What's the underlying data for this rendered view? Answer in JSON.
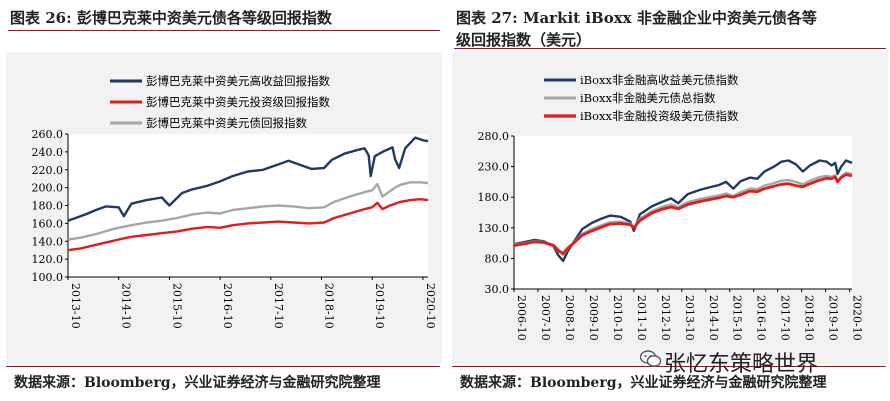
{
  "chart_data": [
    {
      "type": "line",
      "title": "图表 26:  彭博巴克莱中资美元债各等级回报指数",
      "xlabel": "",
      "ylabel": "",
      "ylim": [
        100.0,
        260.0
      ],
      "yticks": [
        "260.0",
        "240.0",
        "220.0",
        "200.0",
        "180.0",
        "160.0",
        "140.0",
        "120.0",
        "100.0"
      ],
      "ytick_values": [
        260,
        240,
        220,
        200,
        180,
        160,
        140,
        120,
        100
      ],
      "xlim": [
        2013.75,
        2020.85
      ],
      "xticks": [
        "2013-10",
        "2014-10",
        "2015-10",
        "2016-10",
        "2017-10",
        "2018-10",
        "2019-10",
        "2020-10"
      ],
      "xtick_values": [
        2013.75,
        2014.75,
        2015.75,
        2016.75,
        2017.75,
        2018.75,
        2019.75,
        2020.75
      ],
      "legend_position": "top",
      "series": [
        {
          "name": "彭博巴克莱中资美元高收益回报指数",
          "color": "#1f3b63",
          "x": [
            2013.75,
            2013.9,
            2014.1,
            2014.3,
            2014.5,
            2014.75,
            2014.85,
            2015.0,
            2015.3,
            2015.6,
            2015.75,
            2016.0,
            2016.2,
            2016.5,
            2016.75,
            2017.0,
            2017.3,
            2017.6,
            2017.9,
            2018.1,
            2018.3,
            2018.55,
            2018.8,
            2018.95,
            2019.2,
            2019.45,
            2019.6,
            2019.68,
            2019.72,
            2019.8,
            2019.95,
            2020.15,
            2020.2,
            2020.28,
            2020.4,
            2020.6,
            2020.75,
            2020.85
          ],
          "y": [
            163,
            166,
            170,
            175,
            179,
            178,
            168,
            182,
            186,
            189,
            180,
            194,
            198,
            202,
            207,
            213,
            218,
            220,
            226,
            230,
            226,
            221,
            222,
            231,
            238,
            242,
            244,
            236,
            213,
            235,
            240,
            245,
            232,
            222,
            244,
            256,
            253,
            252
          ]
        },
        {
          "name": "彭博巴克莱中资美元投资级回报指数",
          "color": "#e31b1b",
          "x": [
            2013.75,
            2014.0,
            2014.3,
            2014.6,
            2014.75,
            2015.0,
            2015.3,
            2015.6,
            2015.9,
            2016.2,
            2016.5,
            2016.75,
            2017.0,
            2017.3,
            2017.6,
            2017.9,
            2018.2,
            2018.5,
            2018.8,
            2019.0,
            2019.3,
            2019.6,
            2019.75,
            2019.85,
            2019.95,
            2020.1,
            2020.2,
            2020.3,
            2020.5,
            2020.7,
            2020.85
          ],
          "y": [
            130,
            132,
            136,
            140,
            142,
            145,
            147,
            149,
            151,
            154,
            156,
            155,
            158,
            160,
            161,
            162,
            161,
            160,
            161,
            166,
            171,
            176,
            178,
            183,
            176,
            180,
            182,
            184,
            186,
            187,
            186
          ]
        },
        {
          "name": "彭博巴克莱中资美元债回报指数",
          "color": "#a6a6a6",
          "x": [
            2013.75,
            2014.0,
            2014.3,
            2014.6,
            2014.75,
            2015.0,
            2015.3,
            2015.6,
            2015.9,
            2016.2,
            2016.5,
            2016.75,
            2017.0,
            2017.3,
            2017.6,
            2017.9,
            2018.2,
            2018.5,
            2018.8,
            2019.0,
            2019.3,
            2019.6,
            2019.75,
            2019.85,
            2019.95,
            2020.1,
            2020.2,
            2020.3,
            2020.5,
            2020.7,
            2020.85
          ],
          "y": [
            142,
            144,
            148,
            153,
            155,
            158,
            161,
            163,
            166,
            170,
            172,
            171,
            175,
            177,
            179,
            180,
            179,
            177,
            178,
            184,
            190,
            195,
            197,
            204,
            190,
            196,
            200,
            203,
            206,
            206,
            205
          ]
        }
      ]
    },
    {
      "type": "line",
      "title": "图表 27:  Markit iBoxx 非金融企业中资美元债各等级回报指数（美元）",
      "title_line1": "图表 27:  Markit iBoxx 非金融企业中资美元债各等",
      "title_line2": "级回报指数（美元）",
      "xlabel": "",
      "ylabel": "",
      "ylim": [
        30.0,
        280.0
      ],
      "yticks": [
        "280.0",
        "230.0",
        "180.0",
        "130.0",
        "80.0",
        "30.0"
      ],
      "ytick_values": [
        280,
        230,
        180,
        130,
        80,
        30
      ],
      "xlim": [
        2006.75,
        2020.85
      ],
      "xticks": [
        "2006-10",
        "2007-10",
        "2008-10",
        "2009-10",
        "2010-10",
        "2011-10",
        "2012-10",
        "2013-10",
        "2014-10",
        "2015-10",
        "2016-10",
        "2017-10",
        "2018-10",
        "2019-10",
        "2020-10"
      ],
      "xtick_values": [
        2006.75,
        2007.75,
        2008.75,
        2009.75,
        2010.75,
        2011.75,
        2012.75,
        2013.75,
        2014.75,
        2015.75,
        2016.75,
        2017.75,
        2018.75,
        2019.75,
        2020.75
      ],
      "legend_position": "top",
      "series": [
        {
          "name": "iBoxx非金融高收益美元债指数",
          "color": "#1f3b63",
          "x": [
            2006.75,
            2007.2,
            2007.6,
            2008.0,
            2008.4,
            2008.6,
            2008.8,
            2009.0,
            2009.3,
            2009.6,
            2010.0,
            2010.4,
            2010.75,
            2011.2,
            2011.6,
            2011.75,
            2012.0,
            2012.5,
            2012.9,
            2013.3,
            2013.6,
            2014.0,
            2014.5,
            2014.9,
            2015.3,
            2015.6,
            2015.9,
            2016.2,
            2016.6,
            2016.9,
            2017.2,
            2017.6,
            2017.9,
            2018.2,
            2018.5,
            2018.8,
            2019.1,
            2019.5,
            2019.8,
            2020.0,
            2020.15,
            2020.25,
            2020.4,
            2020.6,
            2020.85
          ],
          "y": [
            103,
            107,
            110,
            108,
            100,
            85,
            76,
            92,
            110,
            128,
            138,
            145,
            150,
            148,
            140,
            125,
            152,
            165,
            172,
            178,
            170,
            185,
            192,
            196,
            200,
            205,
            194,
            206,
            212,
            210,
            222,
            230,
            238,
            240,
            234,
            222,
            232,
            240,
            238,
            232,
            236,
            218,
            230,
            240,
            236
          ]
        },
        {
          "name": "iBoxx非金融美元债总指数",
          "color": "#a6a6a6",
          "x": [
            2006.75,
            2007.2,
            2007.6,
            2008.0,
            2008.4,
            2008.6,
            2008.8,
            2009.0,
            2009.3,
            2009.6,
            2010.0,
            2010.4,
            2010.75,
            2011.2,
            2011.6,
            2011.75,
            2012.0,
            2012.5,
            2012.9,
            2013.3,
            2013.6,
            2014.0,
            2014.5,
            2014.9,
            2015.3,
            2015.6,
            2015.9,
            2016.2,
            2016.6,
            2016.9,
            2017.2,
            2017.6,
            2017.9,
            2018.2,
            2018.5,
            2018.8,
            2019.1,
            2019.5,
            2019.8,
            2020.0,
            2020.15,
            2020.25,
            2020.4,
            2020.6,
            2020.85
          ],
          "y": [
            102,
            105,
            108,
            107,
            101,
            92,
            86,
            96,
            108,
            120,
            128,
            134,
            139,
            140,
            137,
            130,
            145,
            157,
            164,
            168,
            164,
            172,
            177,
            180,
            183,
            186,
            182,
            188,
            194,
            193,
            199,
            203,
            207,
            208,
            205,
            201,
            207,
            213,
            215,
            213,
            216,
            205,
            214,
            220,
            218
          ]
        },
        {
          "name": "iBoxx非金融投资级美元债指数",
          "color": "#e31b1b",
          "x": [
            2006.75,
            2007.2,
            2007.6,
            2008.0,
            2008.4,
            2008.6,
            2008.8,
            2009.0,
            2009.3,
            2009.6,
            2010.0,
            2010.4,
            2010.75,
            2011.2,
            2011.6,
            2011.75,
            2012.0,
            2012.5,
            2012.9,
            2013.3,
            2013.6,
            2014.0,
            2014.5,
            2014.9,
            2015.3,
            2015.6,
            2015.9,
            2016.2,
            2016.6,
            2016.9,
            2017.2,
            2017.6,
            2017.9,
            2018.2,
            2018.5,
            2018.8,
            2019.1,
            2019.5,
            2019.8,
            2020.0,
            2020.15,
            2020.25,
            2020.4,
            2020.6,
            2020.85
          ],
          "y": [
            101,
            104,
            107,
            106,
            101,
            93,
            88,
            97,
            107,
            118,
            125,
            131,
            136,
            137,
            135,
            130,
            142,
            154,
            160,
            164,
            161,
            168,
            173,
            176,
            179,
            182,
            180,
            184,
            190,
            189,
            194,
            198,
            201,
            202,
            199,
            197,
            202,
            208,
            211,
            210,
            213,
            205,
            212,
            217,
            215
          ]
        }
      ]
    }
  ],
  "sources": {
    "left": "数据来源：Bloomberg，兴业证券经济与金融研究院整理",
    "right": "数据来源：Bloomberg，兴业证券经济与金融研究院整理"
  },
  "watermark": {
    "text": "张忆东策略世界",
    "icon": "wechat-icon"
  }
}
